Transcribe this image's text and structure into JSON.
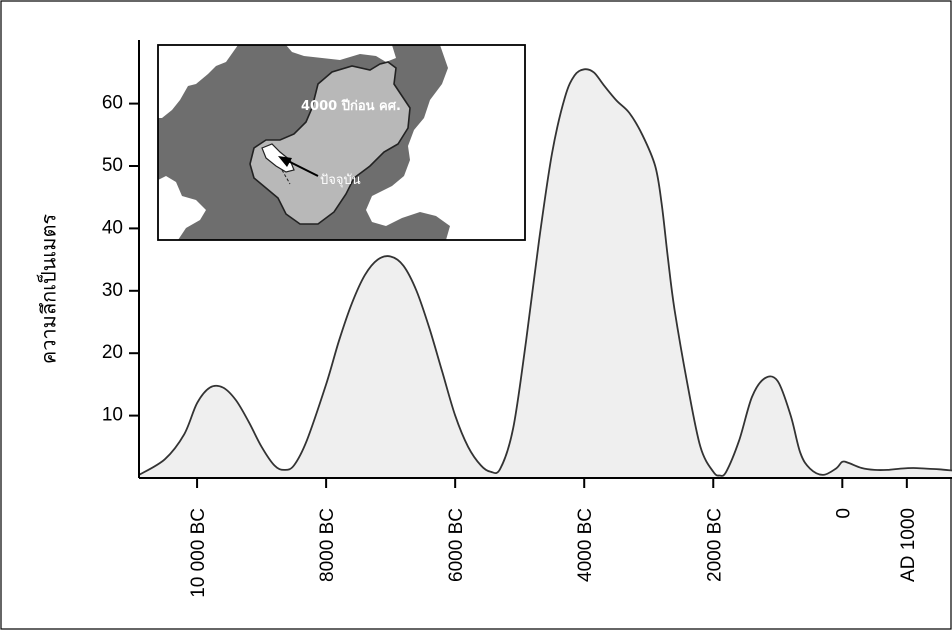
{
  "chart_data": {
    "type": "area",
    "title": "",
    "xlabel": "",
    "ylabel": "ความลึกเป็นเมตร",
    "x_ticks": [
      {
        "label": "10 000 BC",
        "value": -10000
      },
      {
        "label": "8000 BC",
        "value": -8000
      },
      {
        "label": "6000 BC",
        "value": -6000
      },
      {
        "label": "4000 BC",
        "value": -4000
      },
      {
        "label": "2000 BC",
        "value": -2000
      },
      {
        "label": "0",
        "value": 0
      },
      {
        "label": "AD 1000",
        "value": 1000
      }
    ],
    "y_ticks": [
      10,
      20,
      30,
      40,
      50,
      60
    ],
    "xlim": [
      -10900,
      1700
    ],
    "ylim": [
      0,
      70
    ],
    "grid": false,
    "fill_color": "#efefef",
    "line_color": "#333333",
    "x": [
      -10900,
      -10500,
      -10200,
      -10000,
      -9800,
      -9600,
      -9400,
      -9200,
      -9000,
      -8800,
      -8650,
      -8500,
      -8300,
      -8000,
      -7800,
      -7600,
      -7400,
      -7200,
      -7000,
      -6800,
      -6600,
      -6400,
      -6200,
      -6000,
      -5800,
      -5600,
      -5450,
      -5300,
      -5100,
      -4900,
      -4700,
      -4500,
      -4300,
      -4150,
      -4000,
      -3850,
      -3700,
      -3500,
      -3300,
      -3100,
      -2900,
      -2800,
      -2700,
      -2600,
      -2400,
      -2200,
      -2000,
      -1900,
      -1800,
      -1600,
      -1400,
      -1200,
      -1000,
      -800,
      -650,
      -500,
      -300,
      -100,
      0,
      100,
      300,
      500,
      700,
      900,
      1100,
      1300,
      1500,
      1700
    ],
    "y": [
      0.5,
      3,
      7,
      12,
      14.5,
      14.5,
      12.5,
      9,
      5,
      2,
      1.3,
      2,
      6,
      15,
      22,
      28,
      32.5,
      35,
      35.5,
      34,
      30,
      24,
      17,
      10,
      5,
      2,
      1,
      1.5,
      8,
      22,
      38,
      52,
      61,
      64.5,
      65.5,
      65,
      63,
      60.5,
      58.5,
      55,
      50,
      44,
      35,
      27,
      15,
      5,
      1,
      0.4,
      1,
      6,
      13,
      16,
      15.5,
      10,
      4,
      1.5,
      0.5,
      1.5,
      2.6,
      2.4,
      1.6,
      1.3,
      1.3,
      1.5,
      1.6,
      1.5,
      1.4,
      1.2
    ]
  },
  "inset": {
    "label_past": "4000 ปีก่อน คศ.",
    "label_present": "ปัจจุบัน"
  }
}
